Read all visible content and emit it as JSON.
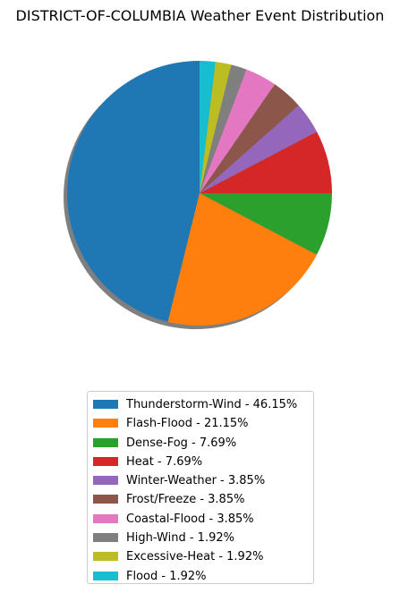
{
  "chart_data": {
    "type": "pie",
    "title": "DISTRICT-OF-COLUMBIA Weather Event Distribution",
    "shadow": true,
    "start_angle_deg": 90,
    "direction": "counterclockwise",
    "legend_position": "bottom-center",
    "slices": [
      {
        "label": "Thunderstorm-Wind",
        "value": 46.15,
        "legend": "Thunderstorm-Wind - 46.15%",
        "color": "#1f77b4"
      },
      {
        "label": "Flash-Flood",
        "value": 21.15,
        "legend": "Flash-Flood - 21.15%",
        "color": "#ff7f0e"
      },
      {
        "label": "Dense-Fog",
        "value": 7.69,
        "legend": "Dense-Fog - 7.69%",
        "color": "#2ca02c"
      },
      {
        "label": "Heat",
        "value": 7.69,
        "legend": "Heat - 7.69%",
        "color": "#d62728"
      },
      {
        "label": "Winter-Weather",
        "value": 3.85,
        "legend": "Winter-Weather - 3.85%",
        "color": "#9467bd"
      },
      {
        "label": "Frost/Freeze",
        "value": 3.85,
        "legend": "Frost/Freeze - 3.85%",
        "color": "#8c564b"
      },
      {
        "label": "Coastal-Flood",
        "value": 3.85,
        "legend": "Coastal-Flood - 3.85%",
        "color": "#e377c2"
      },
      {
        "label": "High-Wind",
        "value": 1.92,
        "legend": "High-Wind - 1.92%",
        "color": "#7f7f7f"
      },
      {
        "label": "Excessive-Heat",
        "value": 1.92,
        "legend": "Excessive-Heat - 1.92%",
        "color": "#bcbd22"
      },
      {
        "label": "Flood",
        "value": 1.92,
        "legend": "Flood - 1.92%",
        "color": "#17becf"
      }
    ]
  }
}
